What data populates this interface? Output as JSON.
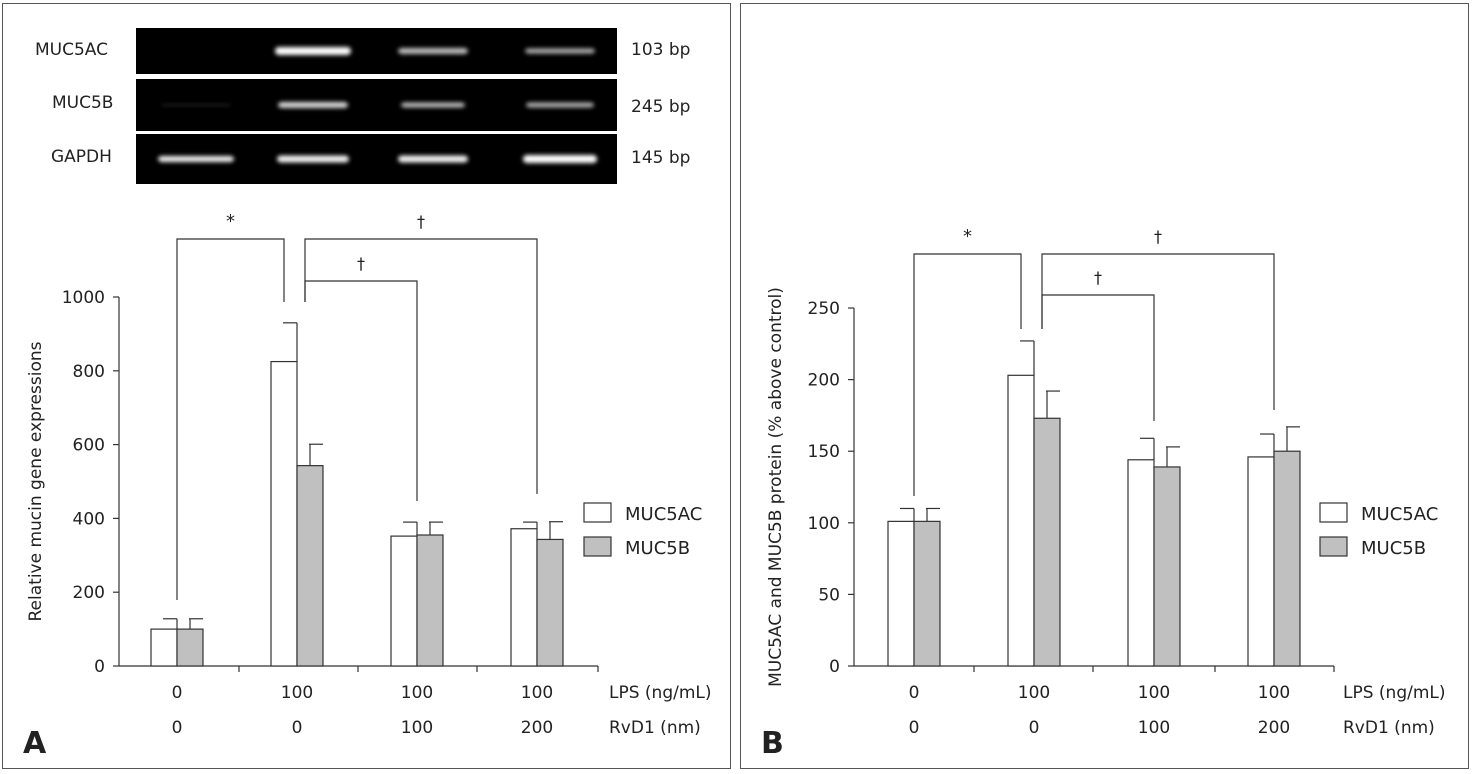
{
  "panels": [
    {
      "label": "A",
      "gel": {
        "rows": [
          {
            "name": "MUC5AC",
            "size": "103 bp"
          },
          {
            "name": "MUC5B",
            "size": "245 bp"
          },
          {
            "name": "GAPDH",
            "size": "145 bp"
          }
        ]
      }
    },
    {
      "label": "B"
    }
  ],
  "chart_data": [
    {
      "type": "bar",
      "panel": "A",
      "categories": [
        "0|0",
        "100|0",
        "100|100",
        "100|200"
      ],
      "row_labels": [
        "LPS (ng/mL)",
        "RvD1 (nm)"
      ],
      "row_values": [
        [
          "0",
          "100",
          "100",
          "100"
        ],
        [
          "0",
          "0",
          "100",
          "200"
        ]
      ],
      "ylabel": "Relative mucin gene expressions",
      "ylim": [
        0,
        1000
      ],
      "yticks": [
        0,
        200,
        400,
        600,
        800,
        1000
      ],
      "legend": "right",
      "series": [
        {
          "name": "MUC5AC",
          "color": "#ffffff",
          "values": [
            100,
            825,
            352,
            372
          ],
          "errors": [
            28,
            105,
            38,
            18
          ]
        },
        {
          "name": "MUC5B",
          "color": "#c0c0c0",
          "values": [
            100,
            543,
            355,
            343
          ],
          "errors": [
            28,
            58,
            35,
            48
          ]
        }
      ],
      "annotations": [
        {
          "symbol": "*",
          "from": 0,
          "to": 1,
          "level": 1
        },
        {
          "symbol": "†",
          "from": 1,
          "to": 3,
          "level": 1
        },
        {
          "symbol": "†",
          "from": 1,
          "to": 2,
          "level": 0
        }
      ]
    },
    {
      "type": "bar",
      "panel": "B",
      "categories": [
        "0|0",
        "100|0",
        "100|100",
        "100|200"
      ],
      "row_labels": [
        "LPS (ng/mL)",
        "RvD1 (nm)"
      ],
      "row_values": [
        [
          "0",
          "100",
          "100",
          "100"
        ],
        [
          "0",
          "0",
          "100",
          "200"
        ]
      ],
      "ylabel": "MUC5AC and MUC5B protein (% above control)",
      "ylim": [
        0,
        250
      ],
      "yticks": [
        0,
        50,
        100,
        150,
        200,
        250
      ],
      "legend": "right",
      "series": [
        {
          "name": "MUC5AC",
          "color": "#ffffff",
          "values": [
            101,
            203,
            144,
            146
          ],
          "errors": [
            9,
            24,
            15,
            16
          ]
        },
        {
          "name": "MUC5B",
          "color": "#c0c0c0",
          "values": [
            101,
            173,
            139,
            150
          ],
          "errors": [
            9,
            19,
            14,
            17
          ]
        }
      ],
      "annotations": [
        {
          "symbol": "*",
          "from": 0,
          "to": 1,
          "level": 1
        },
        {
          "symbol": "†",
          "from": 1,
          "to": 3,
          "level": 1
        },
        {
          "symbol": "†",
          "from": 1,
          "to": 2,
          "level": 0
        }
      ]
    }
  ]
}
